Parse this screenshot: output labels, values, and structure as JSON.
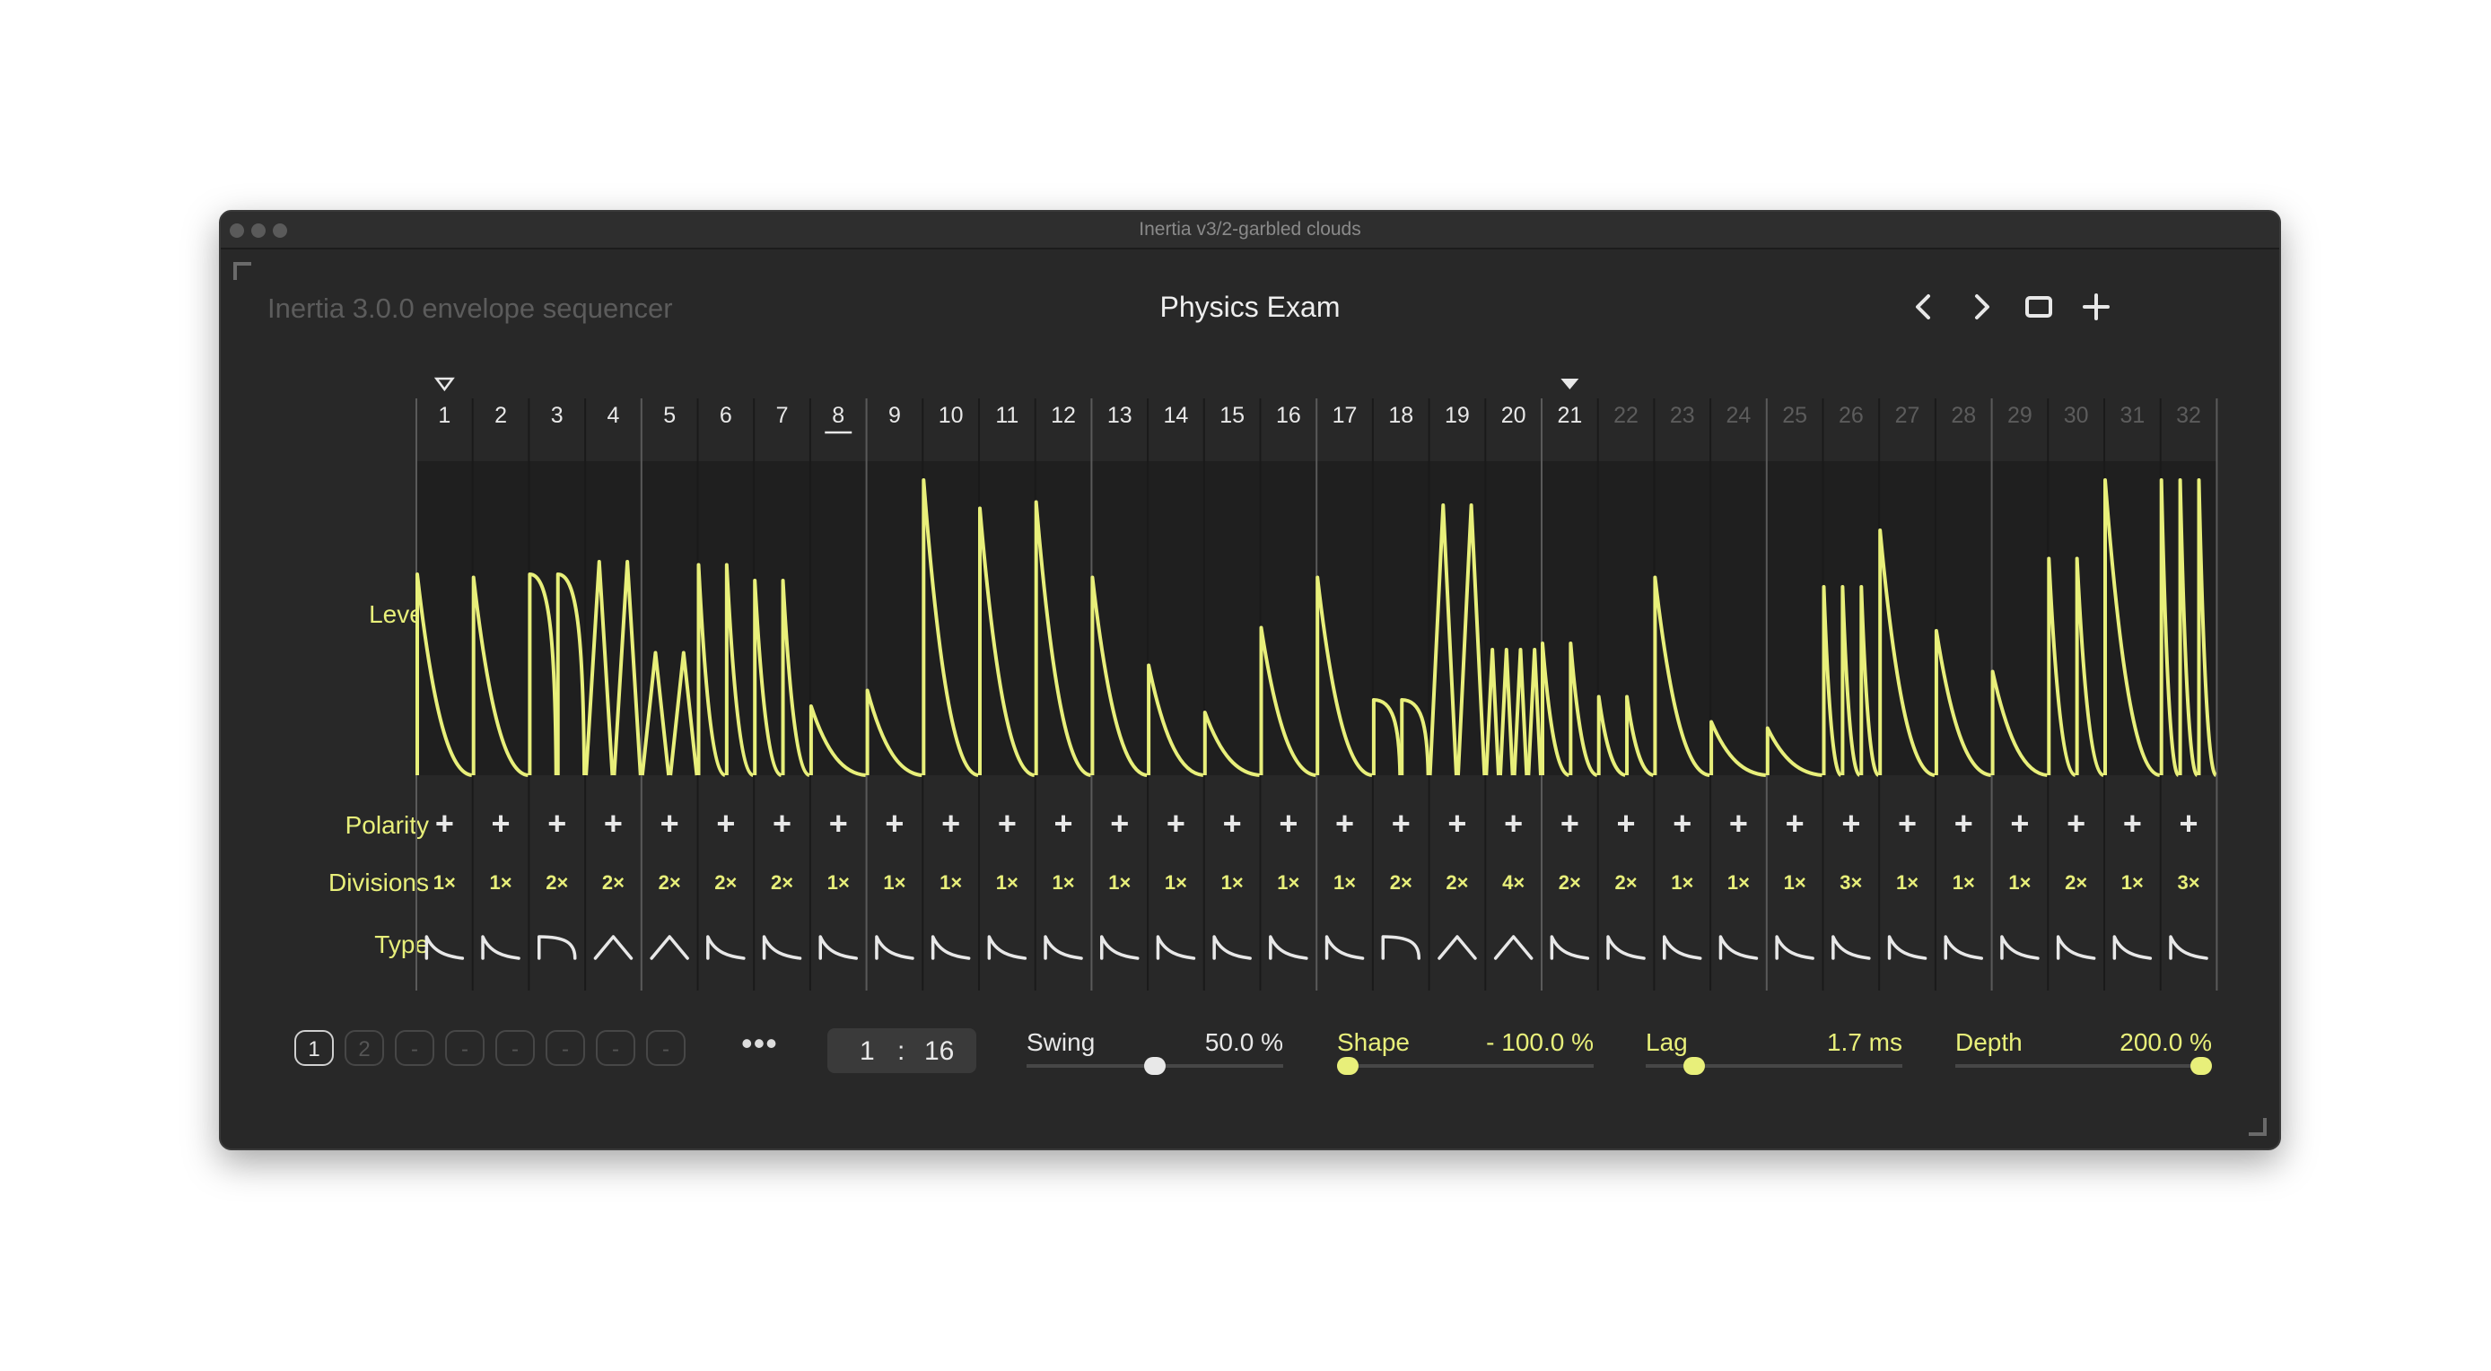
{
  "window": {
    "title": "Inertia v3/2-garbled clouds"
  },
  "header": {
    "app_name": "Inertia 3.0.0 envelope sequencer",
    "patch_name": "Physics Exam",
    "nav_icons": [
      "chevron-left-icon",
      "chevron-right-icon",
      "window-icon",
      "plus-icon"
    ]
  },
  "colors": {
    "accent": "#e8ef7a",
    "background": "#282828",
    "panel": "#1f1f1f",
    "dim": "#5c5c5c"
  },
  "sequencer": {
    "active_steps": 21,
    "play_marker_step": 1,
    "current_marker_step": 21,
    "underlined_step": 8,
    "row_labels": {
      "level": "Level",
      "polarity": "Polarity",
      "divisions": "Divisions",
      "type": "Type"
    },
    "steps": [
      {
        "n": "1",
        "pol": "+",
        "div": "1×",
        "type": "decay",
        "hits": 1,
        "level": 0.64
      },
      {
        "n": "2",
        "pol": "+",
        "div": "1×",
        "type": "decay",
        "hits": 1,
        "level": 0.63
      },
      {
        "n": "3",
        "pol": "+",
        "div": "2×",
        "type": "hold",
        "hits": 2,
        "level": 0.64
      },
      {
        "n": "4",
        "pol": "+",
        "div": "2×",
        "type": "tri",
        "hits": 2,
        "level": 0.68
      },
      {
        "n": "5",
        "pol": "+",
        "div": "2×",
        "type": "tri",
        "hits": 2,
        "level": 0.39
      },
      {
        "n": "6",
        "pol": "+",
        "div": "2×",
        "type": "decay",
        "hits": 2,
        "level": 0.67
      },
      {
        "n": "7",
        "pol": "+",
        "div": "2×",
        "type": "decay",
        "hits": 2,
        "level": 0.62
      },
      {
        "n": "8",
        "pol": "+",
        "div": "1×",
        "type": "decay",
        "hits": 1,
        "level": 0.22
      },
      {
        "n": "9",
        "pol": "+",
        "div": "1×",
        "type": "decay",
        "hits": 1,
        "level": 0.27
      },
      {
        "n": "10",
        "pol": "+",
        "div": "1×",
        "type": "decay",
        "hits": 1,
        "level": 0.94
      },
      {
        "n": "11",
        "pol": "+",
        "div": "1×",
        "type": "decay",
        "hits": 1,
        "level": 0.85
      },
      {
        "n": "12",
        "pol": "+",
        "div": "1×",
        "type": "decay",
        "hits": 1,
        "level": 0.87
      },
      {
        "n": "13",
        "pol": "+",
        "div": "1×",
        "type": "decay",
        "hits": 1,
        "level": 0.63
      },
      {
        "n": "14",
        "pol": "+",
        "div": "1×",
        "type": "decay",
        "hits": 1,
        "level": 0.35
      },
      {
        "n": "15",
        "pol": "+",
        "div": "1×",
        "type": "decay",
        "hits": 1,
        "level": 0.2
      },
      {
        "n": "16",
        "pol": "+",
        "div": "1×",
        "type": "decay",
        "hits": 1,
        "level": 0.47
      },
      {
        "n": "17",
        "pol": "+",
        "div": "1×",
        "type": "decay",
        "hits": 1,
        "level": 0.63
      },
      {
        "n": "18",
        "pol": "+",
        "div": "2×",
        "type": "hold",
        "hits": 2,
        "level": 0.24
      },
      {
        "n": "19",
        "pol": "+",
        "div": "2×",
        "type": "tri",
        "hits": 2,
        "level": 0.86
      },
      {
        "n": "20",
        "pol": "+",
        "div": "4×",
        "type": "tri",
        "hits": 4,
        "level": 0.4
      },
      {
        "n": "21",
        "pol": "+",
        "div": "2×",
        "type": "decay",
        "hits": 2,
        "level": 0.42
      },
      {
        "n": "22",
        "pol": "+",
        "div": "2×",
        "type": "decay",
        "hits": 2,
        "level": 0.25
      },
      {
        "n": "23",
        "pol": "+",
        "div": "1×",
        "type": "decay",
        "hits": 1,
        "level": 0.63
      },
      {
        "n": "24",
        "pol": "+",
        "div": "1×",
        "type": "decay",
        "hits": 1,
        "level": 0.17
      },
      {
        "n": "25",
        "pol": "+",
        "div": "1×",
        "type": "decay",
        "hits": 1,
        "level": 0.15
      },
      {
        "n": "26",
        "pol": "+",
        "div": "3×",
        "type": "decay",
        "hits": 3,
        "level": 0.6
      },
      {
        "n": "27",
        "pol": "+",
        "div": "1×",
        "type": "decay",
        "hits": 1,
        "level": 0.78
      },
      {
        "n": "28",
        "pol": "+",
        "div": "1×",
        "type": "decay",
        "hits": 1,
        "level": 0.46
      },
      {
        "n": "29",
        "pol": "+",
        "div": "1×",
        "type": "decay",
        "hits": 1,
        "level": 0.33
      },
      {
        "n": "30",
        "pol": "+",
        "div": "2×",
        "type": "decay",
        "hits": 2,
        "level": 0.69
      },
      {
        "n": "31",
        "pol": "+",
        "div": "1×",
        "type": "decay",
        "hits": 1,
        "level": 0.94
      },
      {
        "n": "32",
        "pol": "+",
        "div": "3×",
        "type": "decay",
        "hits": 3,
        "level": 0.94
      }
    ]
  },
  "footer": {
    "slots": [
      "1",
      "2",
      "-",
      "-",
      "-",
      "-",
      "-",
      "-"
    ],
    "active_slot": 0,
    "more_label": "•••",
    "ratio": {
      "left": "1",
      "sep": ":",
      "right": "16"
    },
    "params": [
      {
        "label": "Swing",
        "value": "50.0 %",
        "fraction": 0.5,
        "accent": false
      },
      {
        "label": "Shape",
        "value": "- 100.0 %",
        "fraction": 0.0,
        "accent": true
      },
      {
        "label": "Lag",
        "value": "1.7 ms",
        "fraction": 0.16,
        "accent": true
      },
      {
        "label": "Depth",
        "value": "200.0 %",
        "fraction": 1.0,
        "accent": true
      }
    ]
  }
}
